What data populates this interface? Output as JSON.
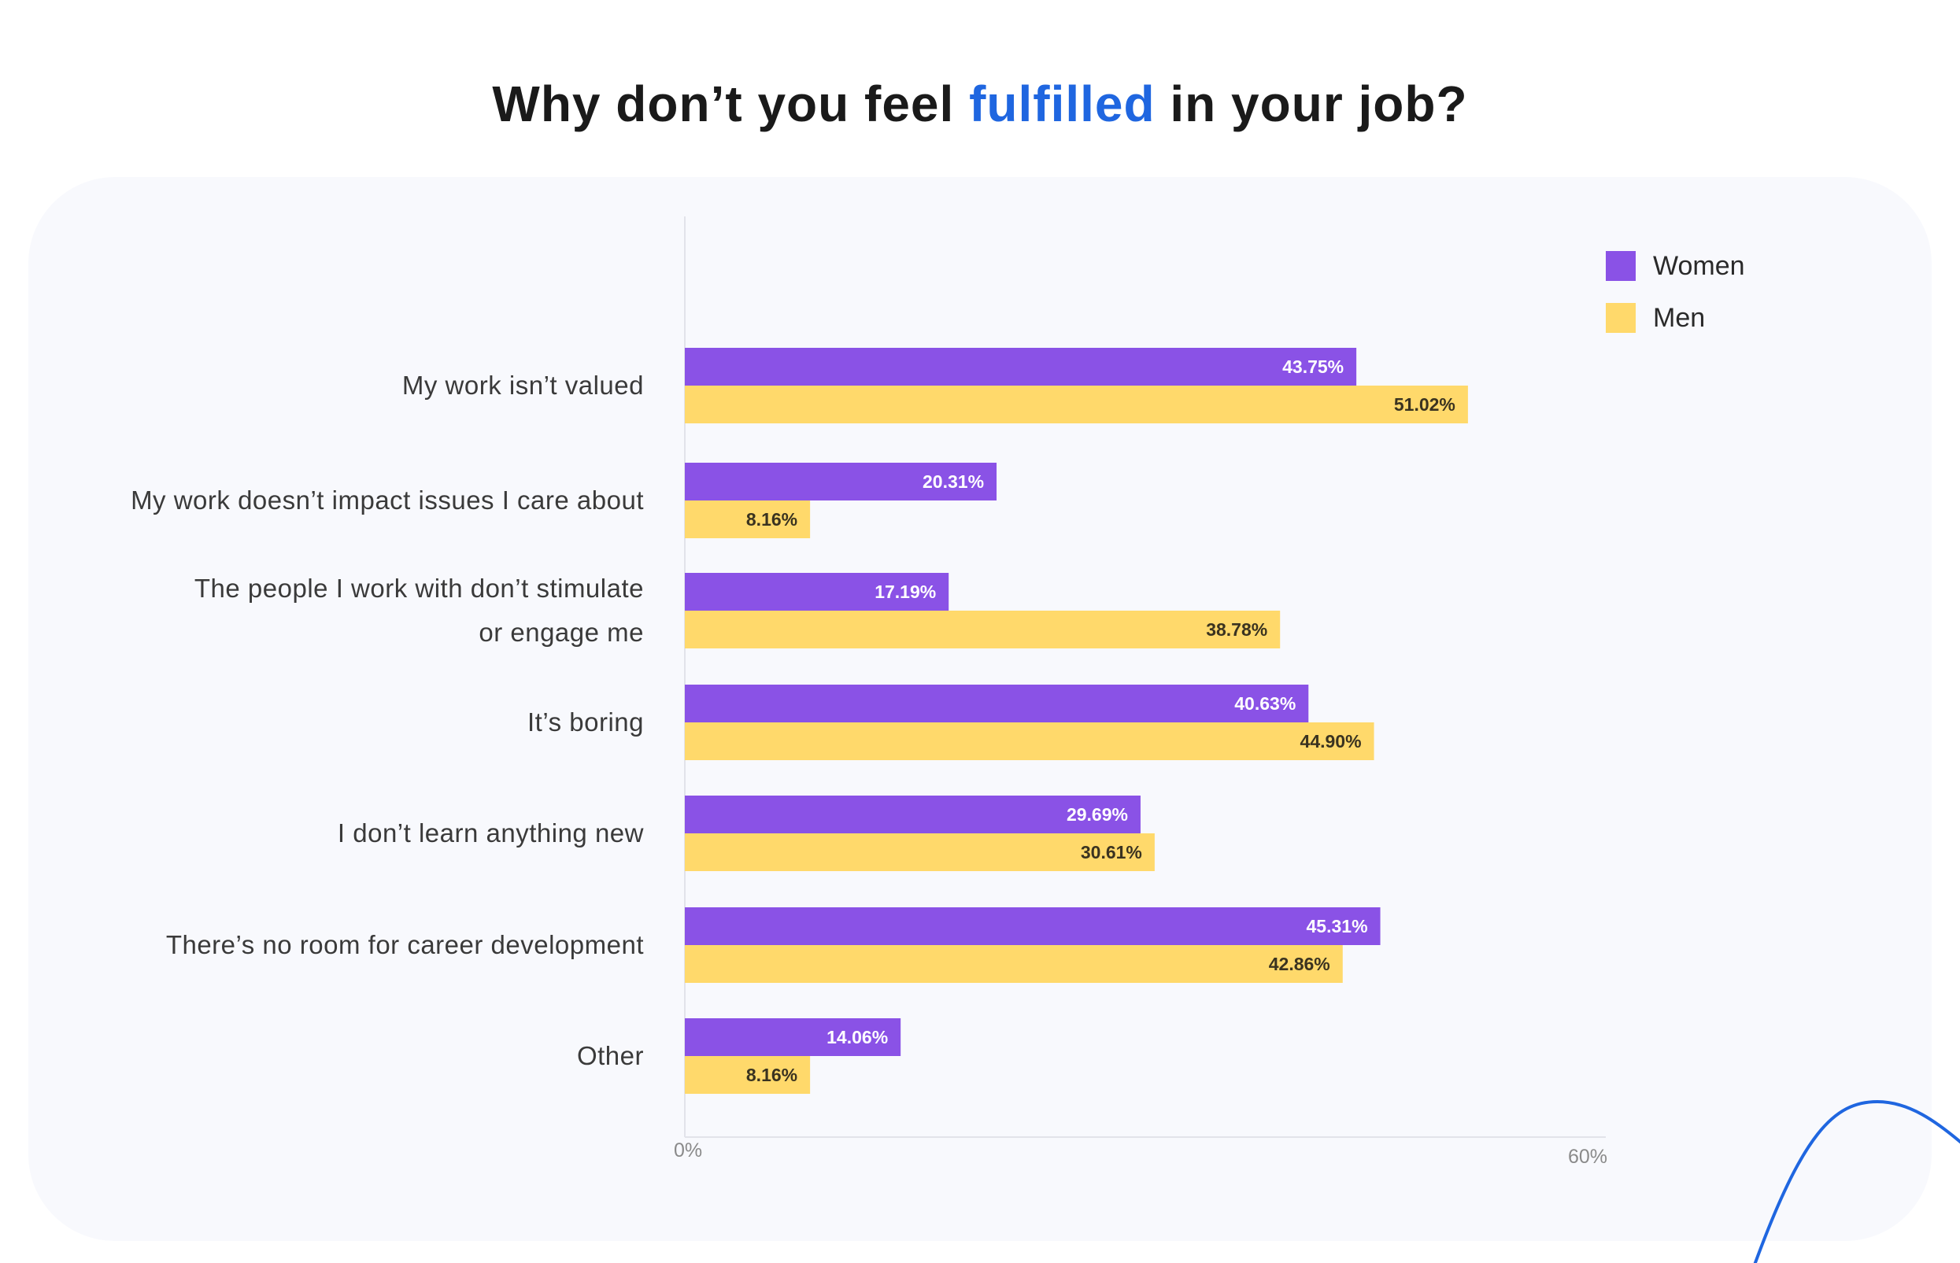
{
  "header": {
    "title_prefix": "Why don’t you feel ",
    "title_accent": "fulfilled",
    "title_suffix": " in your job?"
  },
  "colors": {
    "women": "#8a52e6",
    "men": "#ffd96b",
    "accent": "#1f66e0",
    "women_label_text": "#ffffff",
    "men_label_text": "#3a3320"
  },
  "chart_data": {
    "type": "bar",
    "orientation": "horizontal",
    "categories": [
      [
        "My work isn’t valued"
      ],
      [
        "My work doesn’t impact issues I care about"
      ],
      [
        "The people I work with don’t stimulate",
        "or engage me"
      ],
      [
        "It’s boring"
      ],
      [
        "I don’t learn anything new"
      ],
      [
        "There’s no room for career development"
      ],
      [
        "Other"
      ]
    ],
    "series": [
      {
        "name": "Women",
        "values": [
          43.75,
          20.31,
          17.19,
          40.63,
          29.69,
          45.31,
          14.06
        ],
        "labels": [
          "43.75%",
          "20.31%",
          "17.19%",
          "40.63%",
          "29.69%",
          "45.31%",
          "14.06%"
        ]
      },
      {
        "name": "Men",
        "values": [
          51.02,
          8.16,
          38.78,
          44.9,
          30.61,
          42.86,
          8.16
        ],
        "labels": [
          "51.02%",
          "8.16%",
          "38.78%",
          "44.90%",
          "30.61%",
          "42.86%",
          "8.16%"
        ]
      }
    ],
    "xlim": [
      0,
      60
    ],
    "x_ticks": [
      "0%",
      "60%"
    ],
    "legend_position": "top-right",
    "grid": false
  }
}
